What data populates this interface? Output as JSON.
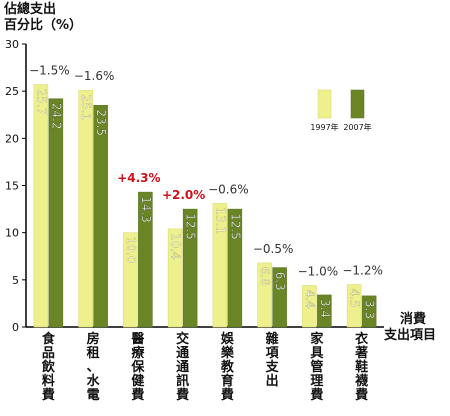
{
  "chart_data": {
    "type": "bar",
    "ylabel_line1": "佔總支出",
    "ylabel_line2": "百分比（%）",
    "xlabel_line1": "消費",
    "xlabel_line2": "支出項目",
    "ylim": [
      0,
      30
    ],
    "yticks": [
      "0",
      "5",
      "10",
      "15",
      "20",
      "25",
      "30"
    ],
    "categories": [
      "食品飲料費",
      "房租、水電",
      "醫療保健費",
      "交通通訊費",
      "娛樂教育費",
      "雜項支出",
      "家具管理費",
      "衣著鞋襪費"
    ],
    "series": [
      {
        "name": "1997年",
        "color": "#eef08e",
        "values": [
          25.7,
          25.1,
          10.0,
          10.4,
          13.1,
          6.8,
          4.4,
          4.5
        ],
        "labels": [
          "25.7",
          "25.1",
          "10.0",
          "10.4",
          "13.1",
          "6.8",
          "4.4",
          "4.5"
        ]
      },
      {
        "name": "2007年",
        "color": "#6a8526",
        "values": [
          24.2,
          23.5,
          14.3,
          12.5,
          12.5,
          6.3,
          3.4,
          3.3
        ],
        "labels": [
          "24.2",
          "23.5",
          "14.3",
          "12.5",
          "12.5",
          "6.3",
          "3.4",
          "3.3"
        ]
      }
    ],
    "changes": [
      {
        "text": "−1.5%",
        "color": "#333333"
      },
      {
        "text": "−1.6%",
        "color": "#333333"
      },
      {
        "text": "+4.3%",
        "color": "#d0101c"
      },
      {
        "text": "+2.0%",
        "color": "#d0101c"
      },
      {
        "text": "−0.6%",
        "color": "#333333"
      },
      {
        "text": "−0.5%",
        "color": "#333333"
      },
      {
        "text": "−1.0%",
        "color": "#333333"
      },
      {
        "text": "−1.2%",
        "color": "#333333"
      }
    ],
    "grid": false,
    "legend": "top-right"
  }
}
